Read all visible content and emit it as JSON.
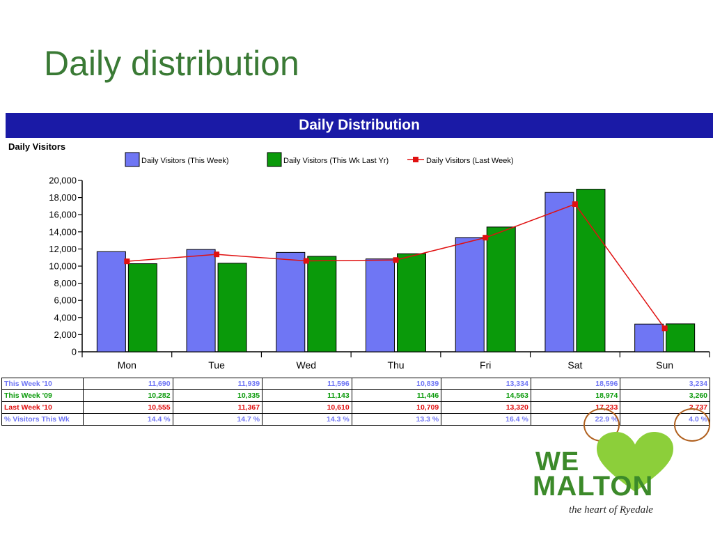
{
  "slide": {
    "title": "Daily distribution"
  },
  "chart_banner": "Daily Distribution",
  "panel_label": "Daily Visitors",
  "chart_data": {
    "type": "bar",
    "title": "Daily Distribution",
    "ylabel": "Daily Visitors",
    "categories": [
      "Mon",
      "Tue",
      "Wed",
      "Thu",
      "Fri",
      "Sat",
      "Sun"
    ],
    "ylim": [
      0,
      20000
    ],
    "yticks": [
      0,
      2000,
      4000,
      6000,
      8000,
      10000,
      12000,
      14000,
      16000,
      18000,
      20000
    ],
    "ytick_labels": [
      "0",
      "2,000",
      "4,000",
      "6,000",
      "8,000",
      "10,000",
      "12,000",
      "14,000",
      "16,000",
      "18,000",
      "20,000"
    ],
    "legend_position": "top",
    "grid": false,
    "series": [
      {
        "name": "Daily Visitors (This Week)",
        "kind": "bar",
        "color": "#6f76f4",
        "values": [
          11690,
          11939,
          11596,
          10839,
          13334,
          18596,
          3234
        ]
      },
      {
        "name": "Daily Visitors (This Wk Last Yr)",
        "kind": "bar",
        "color": "#0a9a0a",
        "values": [
          10282,
          10335,
          11143,
          11446,
          14563,
          18974,
          3260
        ]
      },
      {
        "name": "Daily Visitors (Last Week)",
        "kind": "line",
        "color": "#e01010",
        "values": [
          10555,
          11367,
          10610,
          10709,
          13320,
          17233,
          2737
        ]
      }
    ]
  },
  "table": {
    "rows": [
      {
        "label": "This Week '10",
        "cells": [
          "11,690",
          "11,939",
          "11,596",
          "10,839",
          "13,334",
          "18,596",
          "3,234"
        ]
      },
      {
        "label": "This Week '09",
        "cells": [
          "10,282",
          "10,335",
          "11,143",
          "11,446",
          "14,563",
          "18,974",
          "3,260"
        ]
      },
      {
        "label": "Last Week '10",
        "cells": [
          "10,555",
          "11,367",
          "10,610",
          "10,709",
          "13,320",
          "17,233",
          "2,737"
        ]
      },
      {
        "label": "% Visitors This Wk",
        "cells": [
          "14.4 %",
          "14.7 %",
          "14.3 %",
          "13.3 %",
          "16.4 %",
          "22.9 %",
          "4.0 %"
        ]
      }
    ]
  },
  "logo": {
    "line1": "WE",
    "line2": "MALTON",
    "tagline": "the heart of Ryedale",
    "color": "#3c8a2a",
    "heart_color": "#8ccf3a"
  }
}
